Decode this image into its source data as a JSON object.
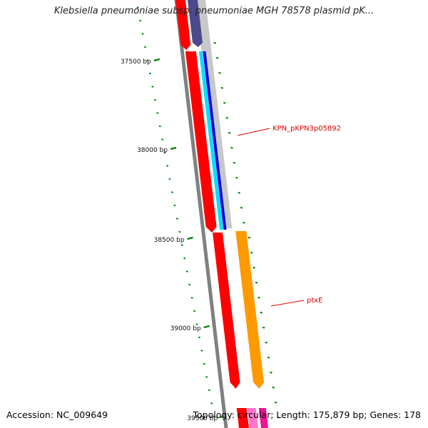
{
  "header": {
    "title": "Klebsiella pneumoniae subsp. pneumoniae MGH 78578 plasmid pK..."
  },
  "footer": {
    "accession": "Accession: NC_009649",
    "summary": "Topology: circular; Length: 175,879 bp; Genes: 178"
  },
  "ruler": {
    "ticks": [
      {
        "bp": 37500,
        "label": "37500 bp"
      },
      {
        "bp": 38000,
        "label": "38000 bp"
      },
      {
        "bp": 38500,
        "label": "38500 bp"
      },
      {
        "bp": 39000,
        "label": "39000 bp"
      },
      {
        "bp": 39500,
        "label": "39500 bp"
      }
    ]
  },
  "gene_labels": [
    {
      "name": "KPN_pKPN3p05892"
    },
    {
      "name": "ptxE"
    }
  ],
  "colors": {
    "backbone": "#808080",
    "gene_red": "#ff0000",
    "gene_navy": "#4a4a8c",
    "gene_blue": "#0000dd",
    "gene_cyan": "#00e0ff",
    "gene_orange": "#ff9900",
    "gene_pink": "#ff77cc",
    "gene_magenta": "#ee1199",
    "tick_green": "#008000",
    "label_red": "#e00000",
    "shade_gray": "#c8c8c8"
  }
}
